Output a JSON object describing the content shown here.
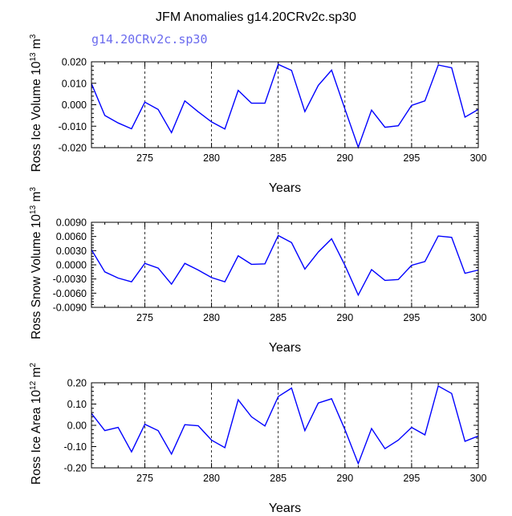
{
  "page": {
    "title": "JFM Anomalies g14.20CRv2c.sp30",
    "legend_label": "g14.20CRv2c.sp30"
  },
  "chart_data": [
    {
      "type": "line",
      "ylabel": "Ross Ice Volume",
      "yunit_exponent": "13",
      "yunit_power": "3",
      "xlabel": "Years",
      "xlim": [
        271,
        300
      ],
      "ylim": [
        -0.02,
        0.02
      ],
      "yticks": [
        -0.02,
        -0.01,
        0.0,
        0.01,
        0.02
      ],
      "ytick_labels": [
        "-0.020",
        "-0.010",
        "0.000",
        "0.010",
        "0.020"
      ],
      "xticks": [
        275,
        280,
        285,
        290,
        295,
        300
      ],
      "xtick_labels": [
        "275",
        "280",
        "285",
        "290",
        "295",
        "300"
      ],
      "series": [
        {
          "name": "g14.20CRv2c.sp30",
          "color": "#0000ff",
          "x": [
            271,
            272,
            273,
            274,
            275,
            276,
            277,
            278,
            279,
            280,
            281,
            282,
            283,
            284,
            285,
            286,
            287,
            288,
            289,
            290,
            291,
            292,
            293,
            294,
            295,
            296,
            297,
            298,
            299,
            300
          ],
          "values": [
            0.0098,
            -0.005,
            -0.0085,
            -0.0112,
            0.0012,
            -0.0022,
            -0.013,
            0.0018,
            -0.0033,
            -0.008,
            -0.0113,
            0.0067,
            0.0007,
            0.0007,
            0.0188,
            0.016,
            -0.0032,
            0.009,
            0.0161,
            -0.002,
            -0.0198,
            -0.0025,
            -0.0105,
            -0.0098,
            -0.0003,
            0.0018,
            0.0185,
            0.0172,
            -0.0058,
            -0.0022
          ]
        }
      ]
    },
    {
      "type": "line",
      "ylabel": "Ross Snow Volume",
      "yunit_exponent": "13",
      "yunit_power": "3",
      "xlabel": "Years",
      "xlim": [
        271,
        300
      ],
      "ylim": [
        -0.009,
        0.009
      ],
      "yticks": [
        -0.009,
        -0.006,
        -0.003,
        0.0,
        0.003,
        0.006,
        0.009
      ],
      "ytick_labels": [
        "-0.0090",
        "-0.0060",
        "-0.0030",
        "0.0000",
        "0.0030",
        "0.0060",
        "0.0090"
      ],
      "xticks": [
        275,
        280,
        285,
        290,
        295,
        300
      ],
      "xtick_labels": [
        "275",
        "280",
        "285",
        "290",
        "295",
        "300"
      ],
      "series": [
        {
          "name": "g14.20CRv2c.sp30",
          "color": "#0000ff",
          "x": [
            271,
            272,
            273,
            274,
            275,
            276,
            277,
            278,
            279,
            280,
            281,
            282,
            283,
            284,
            285,
            286,
            287,
            288,
            289,
            290,
            291,
            292,
            293,
            294,
            295,
            296,
            297,
            298,
            299,
            300
          ],
          "values": [
            0.0032,
            -0.0015,
            -0.0028,
            -0.0036,
            0.0003,
            -0.0007,
            -0.0041,
            0.0003,
            -0.0011,
            -0.0027,
            -0.0036,
            0.0019,
            0.0001,
            0.0002,
            0.0062,
            0.0047,
            -0.0009,
            0.0027,
            0.0055,
            -0.0001,
            -0.0064,
            -0.001,
            -0.0033,
            -0.0031,
            -0.0001,
            0.0007,
            0.0061,
            0.0058,
            -0.0018,
            -0.0011
          ]
        }
      ]
    },
    {
      "type": "line",
      "ylabel": "Ross Ice Area",
      "yunit_exponent": "12",
      "yunit_power": "2",
      "xlabel": "Years",
      "xlim": [
        271,
        300
      ],
      "ylim": [
        -0.2,
        0.2
      ],
      "yticks": [
        -0.2,
        -0.1,
        0.0,
        0.1,
        0.2
      ],
      "ytick_labels": [
        "-0.20",
        "-0.10",
        "0.00",
        "0.10",
        "0.20"
      ],
      "xticks": [
        275,
        280,
        285,
        290,
        295,
        300
      ],
      "xtick_labels": [
        "275",
        "280",
        "285",
        "290",
        "295",
        "300"
      ],
      "series": [
        {
          "name": "g14.20CRv2c.sp30",
          "color": "#0000ff",
          "x": [
            271,
            272,
            273,
            274,
            275,
            276,
            277,
            278,
            279,
            280,
            281,
            282,
            283,
            284,
            285,
            286,
            287,
            288,
            289,
            290,
            291,
            292,
            293,
            294,
            295,
            296,
            297,
            298,
            299,
            300
          ],
          "values": [
            0.056,
            -0.025,
            -0.01,
            -0.125,
            0.005,
            -0.025,
            -0.135,
            0.003,
            -0.002,
            -0.07,
            -0.105,
            0.12,
            0.04,
            -0.003,
            0.135,
            0.175,
            -0.025,
            0.105,
            0.125,
            -0.02,
            -0.18,
            -0.015,
            -0.11,
            -0.07,
            -0.01,
            -0.045,
            0.185,
            0.15,
            -0.075,
            -0.05
          ]
        }
      ]
    }
  ]
}
